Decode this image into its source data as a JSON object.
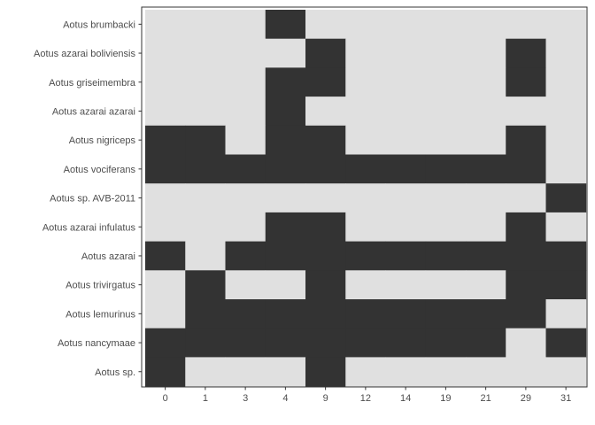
{
  "chart_data": {
    "type": "heatmap",
    "title": "",
    "xlabel": "",
    "ylabel": "",
    "x": [
      "0",
      "1",
      "3",
      "4",
      "9",
      "12",
      "14",
      "19",
      "21",
      "29",
      "31"
    ],
    "y": [
      "Aotus brumbacki",
      "Aotus azarai boliviensis",
      "Aotus griseimembra",
      "Aotus azarai azarai",
      "Aotus nigriceps",
      "Aotus vociferans",
      "Aotus sp. AVB-2011",
      "Aotus azarai infulatus",
      "Aotus azarai",
      "Aotus trivirgatus",
      "Aotus lemurinus",
      "Aotus nancymaae",
      "Aotus sp."
    ],
    "values": [
      [
        0,
        0,
        0,
        1,
        0,
        0,
        0,
        0,
        0,
        0,
        0
      ],
      [
        0,
        0,
        0,
        0,
        1,
        0,
        0,
        0,
        0,
        1,
        0
      ],
      [
        0,
        0,
        0,
        1,
        1,
        0,
        0,
        0,
        0,
        1,
        0
      ],
      [
        0,
        0,
        0,
        1,
        0,
        0,
        0,
        0,
        0,
        0,
        0
      ],
      [
        1,
        1,
        0,
        1,
        1,
        0,
        0,
        0,
        0,
        1,
        0
      ],
      [
        1,
        1,
        1,
        1,
        1,
        1,
        1,
        1,
        1,
        1,
        0
      ],
      [
        0,
        0,
        0,
        0,
        0,
        0,
        0,
        0,
        0,
        0,
        1
      ],
      [
        0,
        0,
        0,
        1,
        1,
        0,
        0,
        0,
        0,
        1,
        0
      ],
      [
        1,
        0,
        1,
        1,
        1,
        1,
        1,
        1,
        1,
        1,
        1
      ],
      [
        0,
        1,
        0,
        0,
        1,
        0,
        0,
        0,
        0,
        1,
        1
      ],
      [
        0,
        1,
        1,
        1,
        1,
        1,
        1,
        1,
        1,
        1,
        0
      ],
      [
        1,
        1,
        1,
        1,
        1,
        1,
        1,
        1,
        1,
        0,
        1
      ],
      [
        1,
        0,
        0,
        0,
        1,
        0,
        0,
        0,
        0,
        0,
        0
      ]
    ],
    "colors": {
      "present": "#333333",
      "absent": "#e0e0e0",
      "axis": "#333333",
      "text": "#4d4d4d"
    },
    "grid": false,
    "legend": "none"
  }
}
